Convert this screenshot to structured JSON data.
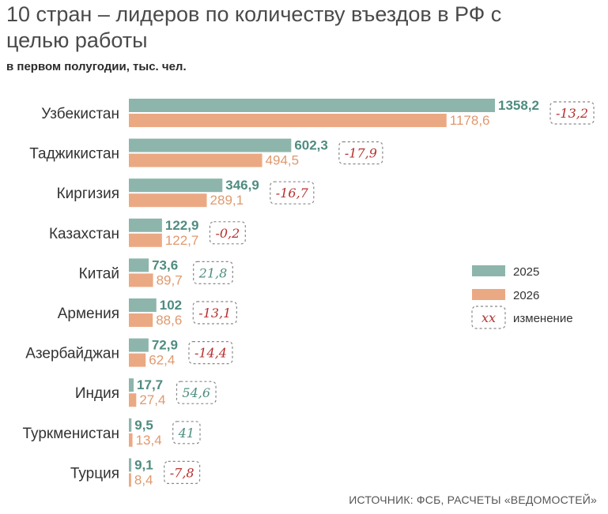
{
  "title": "10 стран – лидеров по количеству въездов в РФ с целью работы",
  "subtitle": "в первом полугодии, тыс. чел.",
  "source": "ИСТОЧНИК: ФСБ, РАСЧЕТЫ «ВЕДОМОСТЕЙ»",
  "colors": {
    "series_2025": "#8db5ab",
    "series_2026": "#eba983",
    "label_2025": "#4f8c80",
    "label_2026": "#e0996e",
    "change_negative": "#b5302e",
    "change_positive": "#4f8c80",
    "change_box": "#888888"
  },
  "chart_data": {
    "type": "bar",
    "orientation": "horizontal",
    "categories": [
      "Узбекистан",
      "Таджикистан",
      "Киргизия",
      "Казахстан",
      "Китай",
      "Армения",
      "Азербайджан",
      "Индия",
      "Туркменистан",
      "Турция"
    ],
    "series": [
      {
        "name": "2025",
        "values": [
          1358.2,
          602.3,
          346.9,
          122.9,
          73.6,
          102,
          72.9,
          17.7,
          9.5,
          9.1
        ],
        "labels": [
          "1358,2",
          "602,3",
          "346,9",
          "122,9",
          "73,6",
          "102",
          "72,9",
          "17,7",
          "9,5",
          "9,1"
        ]
      },
      {
        "name": "2026",
        "values": [
          1178.6,
          494.5,
          289.1,
          122.7,
          89.7,
          88.6,
          62.4,
          27.4,
          13.4,
          8.4
        ],
        "labels": [
          "1178,6",
          "494,5",
          "289,1",
          "122,7",
          "89,7",
          "88,6",
          "62,4",
          "27,4",
          "13,4",
          "8,4"
        ]
      }
    ],
    "change": {
      "values": [
        -13.2,
        -17.9,
        -16.7,
        -0.2,
        21.8,
        -13.1,
        -14.4,
        54.6,
        41,
        -7.8
      ],
      "labels": [
        "-13,2",
        "-17,9",
        "-16,7",
        "-0,2",
        "21,8",
        "-13,1",
        "-14,4",
        "54,6",
        "41",
        "-7,8"
      ]
    },
    "legend": {
      "position": "right",
      "items": [
        "2025",
        "2026"
      ],
      "change_sample": "xx",
      "change_label": "изменение"
    },
    "grid": false
  }
}
